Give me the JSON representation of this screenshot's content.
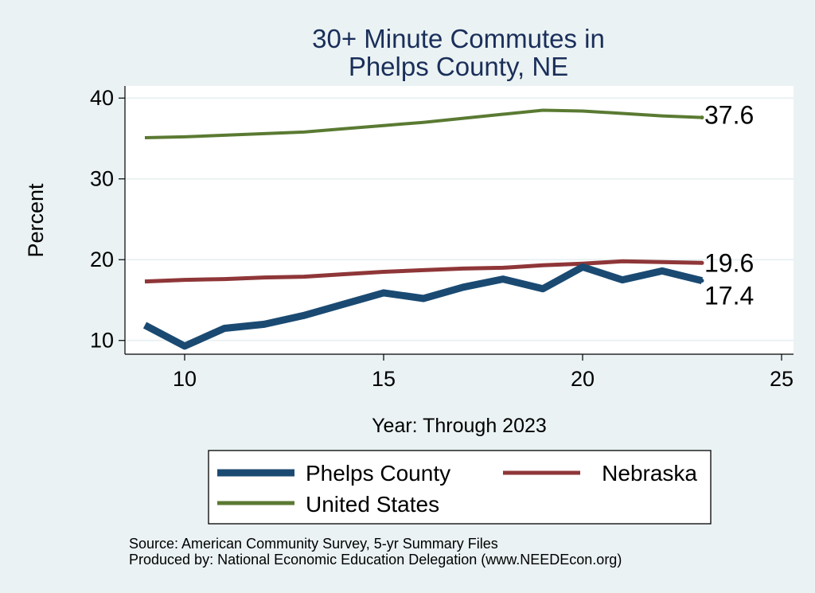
{
  "chart_data": {
    "type": "line",
    "title": [
      "30+ Minute Commutes in",
      "Phelps County, NE"
    ],
    "xlabel": "Year: Through 2023",
    "ylabel": "Percent",
    "xlim": [
      8.5,
      25.3
    ],
    "ylim": [
      8.3,
      41.5
    ],
    "xticks": [
      10,
      15,
      20,
      25
    ],
    "yticks": [
      10,
      20,
      30,
      40
    ],
    "grid": true,
    "legend_position": "bottom",
    "series": [
      {
        "name": "Phelps County",
        "color": "#1a4a72",
        "x": [
          9,
          10,
          11,
          12,
          13,
          14,
          15,
          16,
          17,
          18,
          19,
          20,
          21,
          22,
          23
        ],
        "values": [
          11.9,
          9.3,
          11.5,
          12.0,
          13.1,
          14.5,
          15.9,
          15.2,
          16.6,
          17.6,
          16.4,
          19.1,
          17.5,
          18.6,
          17.4
        ],
        "end_label": "17.4"
      },
      {
        "name": "Nebraska",
        "color": "#8f3638",
        "x": [
          9,
          10,
          11,
          12,
          13,
          14,
          15,
          16,
          17,
          18,
          19,
          20,
          21,
          22,
          23
        ],
        "values": [
          17.3,
          17.5,
          17.6,
          17.8,
          17.9,
          18.2,
          18.5,
          18.7,
          18.9,
          19.0,
          19.3,
          19.5,
          19.8,
          19.7,
          19.6
        ],
        "end_label": "19.6"
      },
      {
        "name": "United States",
        "color": "#5a7a32",
        "x": [
          9,
          10,
          11,
          12,
          13,
          14,
          15,
          16,
          17,
          18,
          19,
          20,
          21,
          22,
          23
        ],
        "values": [
          35.1,
          35.2,
          35.4,
          35.6,
          35.8,
          36.2,
          36.6,
          37.0,
          37.5,
          38.0,
          38.5,
          38.4,
          38.1,
          37.8,
          37.6
        ],
        "end_label": "37.6"
      }
    ],
    "notes": [
      "Source: American Community Survey, 5-yr Summary Files",
      "Produced by: National Economic Education Delegation (www.NEEDEcon.org)"
    ]
  }
}
